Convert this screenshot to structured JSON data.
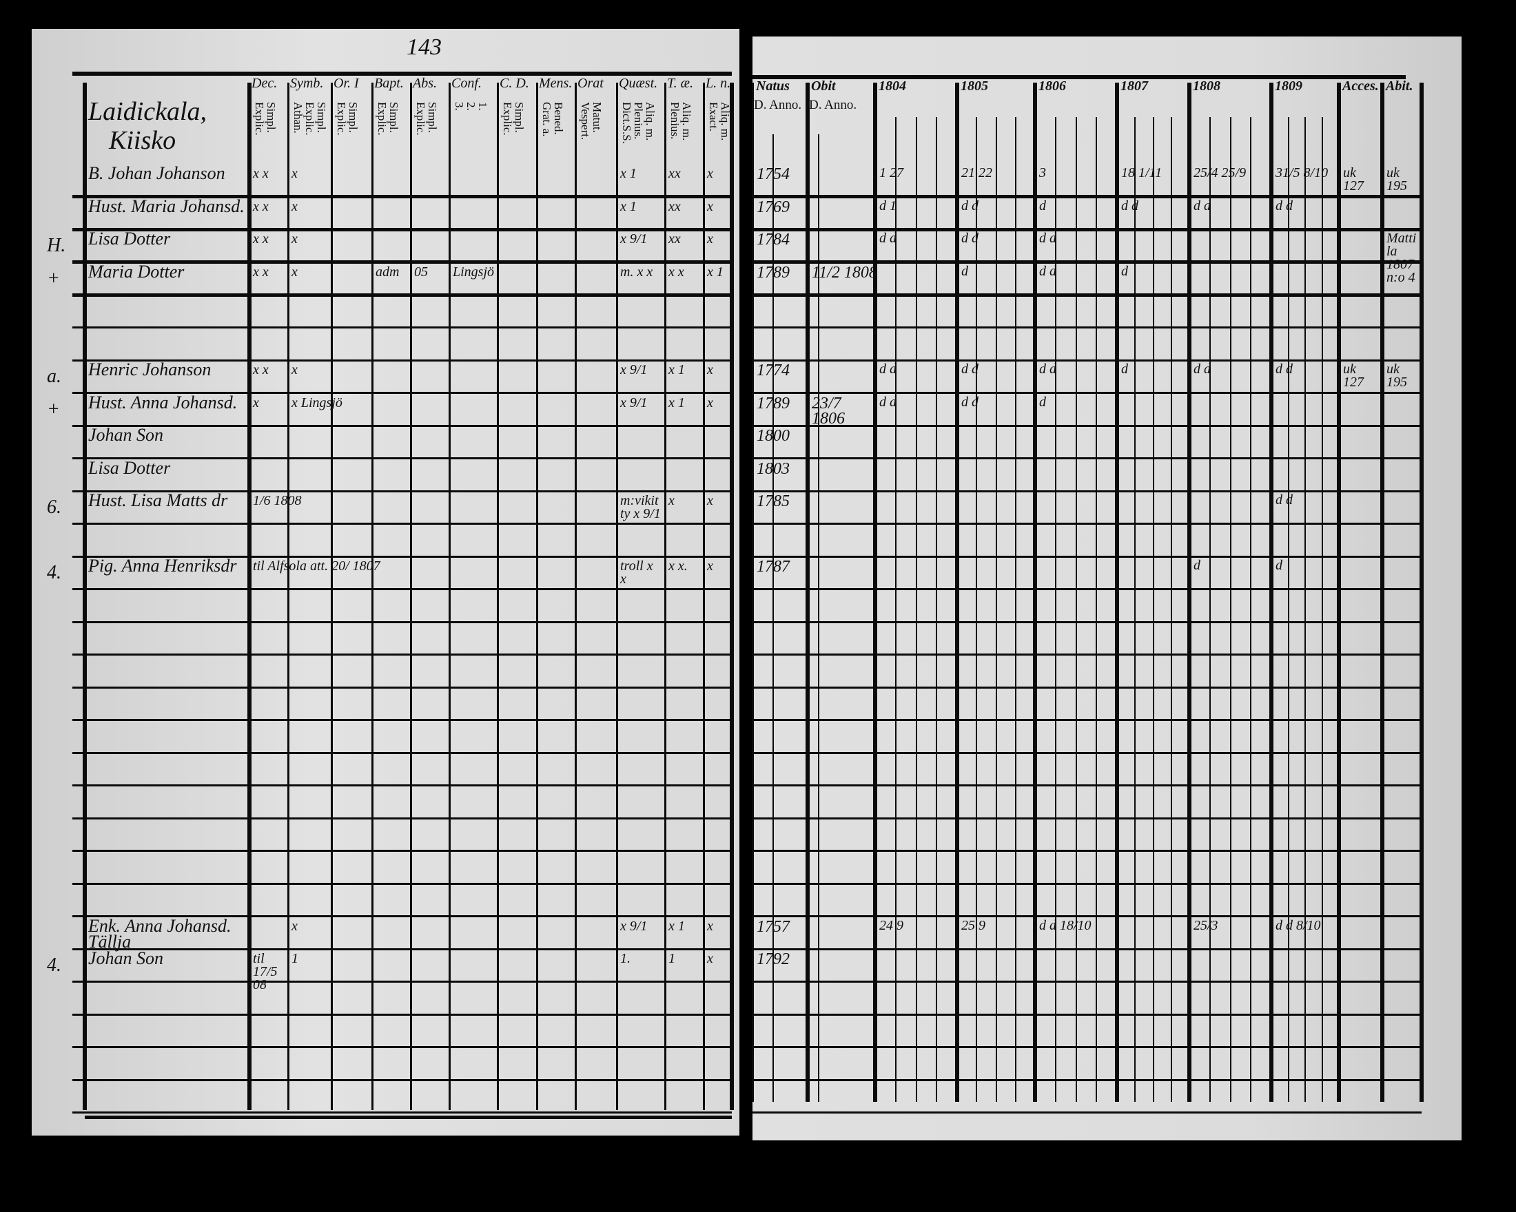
{
  "page_number": "143",
  "left": {
    "parish": [
      "Laidickala,",
      "Kiisko"
    ],
    "columns": [
      {
        "key": "dec",
        "label": "Dec.",
        "sub": "Simpl.\nExplic."
      },
      {
        "key": "symb",
        "label": "Symb.",
        "sub": "Simpl.\nExplic.\nAthan."
      },
      {
        "key": "ori",
        "label": "Or. I",
        "sub": "Simpl.\nExplic."
      },
      {
        "key": "bapt",
        "label": "Bapt.",
        "sub": "Simpl.\nExplic."
      },
      {
        "key": "abs",
        "label": "Abs.",
        "sub": "Simpl.\nExplic."
      },
      {
        "key": "conf",
        "label": "Conf.",
        "sub": "1.\n2.\n3."
      },
      {
        "key": "cd",
        "label": "C. D.",
        "sub": "Simpl.\nExplic."
      },
      {
        "key": "mens",
        "label": "Mens.",
        "sub": "Bened.\nGrat. a."
      },
      {
        "key": "orat",
        "label": "Orat",
        "sub": "Matut.\nVespert."
      },
      {
        "key": "quaest",
        "label": "Quæst.",
        "sub": "Aliq. m.\nPlenius.\nDict.S.S."
      },
      {
        "key": "tae",
        "label": "T. æ.",
        "sub": "Aliq. m.\nPlenius."
      },
      {
        "key": "ln",
        "label": "L. n.",
        "sub": "Aliq. m.\nExact."
      }
    ],
    "rows": [
      {
        "row": 0,
        "marker": "",
        "name": "B. Johan Johanson",
        "marks": {
          "dec": "x x",
          "symb": "x",
          "quaest": "x 1",
          "tae": "xx",
          "ln": "x"
        }
      },
      {
        "row": 1,
        "marker": "",
        "name": "Hust. Maria Johansd.",
        "marks": {
          "dec": "x x",
          "symb": "x",
          "quaest": "x 1",
          "tae": "xx",
          "ln": "x"
        }
      },
      {
        "row": 2,
        "marker": "H.",
        "name": "Lisa Dotter",
        "marks": {
          "dec": "x x",
          "symb": "x",
          "quaest": "x 9/1",
          "tae": "xx",
          "ln": "x"
        }
      },
      {
        "row": 3,
        "marker": "+",
        "name": "Maria Dotter",
        "marks": {
          "dec": "x x",
          "symb": "x",
          "bapt": "adm",
          "abs": "05",
          "conf": "Lingsjö",
          "quaest": "m. x x",
          "tae": "x x",
          "ln": "x 1"
        }
      },
      {
        "row": 6,
        "marker": "a.",
        "name": "Henric Johanson",
        "marks": {
          "dec": "x x",
          "symb": "x",
          "quaest": "x 9/1",
          "tae": "x 1",
          "ln": "x"
        }
      },
      {
        "row": 7,
        "marker": "+",
        "name": "Hust. Anna Johansd.",
        "marks": {
          "dec": "x",
          "symb": "x Lingsjö",
          "quaest": "x 9/1",
          "tae": "x 1",
          "ln": "x"
        }
      },
      {
        "row": 8,
        "marker": "",
        "name": "Johan Son",
        "marks": {}
      },
      {
        "row": 9,
        "marker": "",
        "name": "Lisa Dotter",
        "marks": {}
      },
      {
        "row": 10,
        "marker": "6.",
        "name": "Hust. Lisa Matts dr",
        "marks": {
          "dec": "1/6 1808",
          "quaest": "m:vikitty x 9/1",
          "tae": "x",
          "ln": "x"
        }
      },
      {
        "row": 12,
        "marker": "4.",
        "name": "Pig. Anna Henriksdr",
        "marks": {
          "dec": "til Alfsola att. 20/ 1807",
          "quaest": "troll x x",
          "tae": "x x.",
          "ln": "x"
        }
      },
      {
        "row": 23,
        "marker": "",
        "name": "Enk. Anna Johansd. Tällja",
        "marks": {
          "symb": "x",
          "quaest": "x 9/1",
          "tae": "x 1",
          "ln": "x"
        }
      },
      {
        "row": 24,
        "marker": "4.",
        "name": "Johan Son",
        "marks": {
          "dec": "til 17/5 08",
          "symb": "1",
          "quaest": "1.",
          "tae": "1",
          "ln": "x"
        }
      }
    ]
  },
  "right": {
    "columns": [
      {
        "key": "natus",
        "label": "Natus",
        "sub": "D. Anno."
      },
      {
        "key": "obit",
        "label": "Obit",
        "sub": "D. Anno."
      },
      {
        "key": "y1804",
        "label": "1804"
      },
      {
        "key": "y1805",
        "label": "1805"
      },
      {
        "key": "y1806",
        "label": "1806"
      },
      {
        "key": "y1807",
        "label": "1807"
      },
      {
        "key": "y1808",
        "label": "1808"
      },
      {
        "key": "y1809",
        "label": "1809"
      },
      {
        "key": "acces",
        "label": "Acces."
      },
      {
        "key": "abit",
        "label": "Abit."
      }
    ],
    "rows": [
      {
        "row": 0,
        "cells": {
          "natus": "1754",
          "y1804": "1 27",
          "y1805": "21 22",
          "y1806": "3",
          "y1807": "18  1/11",
          "y1808": "25/4 25/9",
          "y1809": "31/5 8/10",
          "acces": "uk 127",
          "abit": "uk 195"
        }
      },
      {
        "row": 1,
        "cells": {
          "natus": "1769",
          "y1804": "d 1",
          "y1805": "d d",
          "y1806": "d",
          "y1807": "d d",
          "y1808": "d d",
          "y1809": "d d"
        }
      },
      {
        "row": 2,
        "cells": {
          "natus": "1784",
          "y1804": "d d",
          "y1805": "d d",
          "y1806": "d d",
          "abit": "Mattila 1807 n:o 4"
        }
      },
      {
        "row": 3,
        "cells": {
          "natus": "1789",
          "obit": "11/2 1808",
          "y1805": "d",
          "y1806": "d d",
          "y1807": "d"
        }
      },
      {
        "row": 6,
        "cells": {
          "natus": "1774",
          "y1804": "d d",
          "y1805": "d d",
          "y1806": "d d",
          "y1807": "d",
          "y1808": "d d",
          "y1809": "d d",
          "acces": "uk 127",
          "abit": "uk 195"
        }
      },
      {
        "row": 7,
        "cells": {
          "natus": "1789",
          "obit": "23/7 1806",
          "y1804": "d d",
          "y1805": "d d",
          "y1806": "d"
        }
      },
      {
        "row": 8,
        "cells": {
          "natus": "1800"
        }
      },
      {
        "row": 9,
        "cells": {
          "natus": "1803"
        }
      },
      {
        "row": 10,
        "cells": {
          "natus": "1785",
          "y1809": "d d"
        }
      },
      {
        "row": 12,
        "cells": {
          "natus": "1787",
          "y1808": "d",
          "y1809": "d"
        }
      },
      {
        "row": 23,
        "cells": {
          "natus": "1757",
          "y1804": "24 9",
          "y1805": "25 9",
          "y1806": "d d 18/10",
          "y1808": "25/3",
          "y1809": "d d 8/10"
        }
      },
      {
        "row": 24,
        "cells": {
          "natus": "1792"
        }
      }
    ]
  }
}
